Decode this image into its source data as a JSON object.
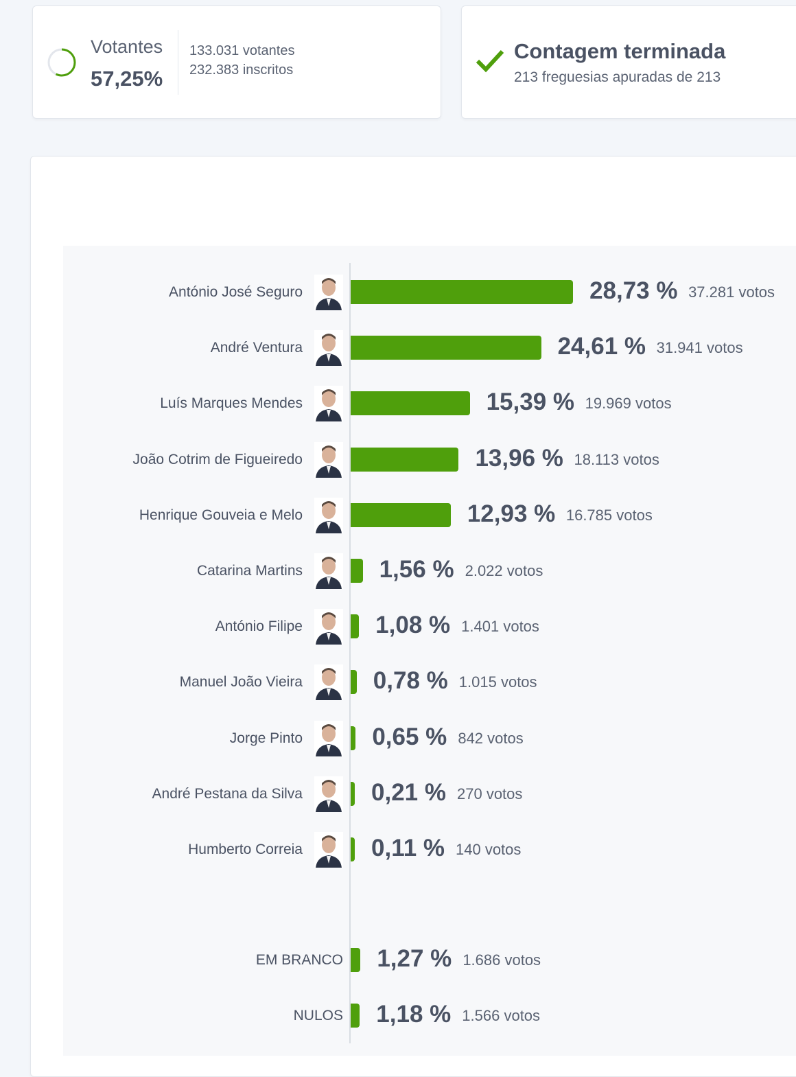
{
  "turnout": {
    "label": "Votantes",
    "percent_text": "57,25%",
    "percent": 57.25,
    "voters": "133.031 votantes",
    "registered": "232.383 inscritos"
  },
  "status": {
    "title": "Contagem terminada",
    "subtitle": "213 freguesias apuradas de 213"
  },
  "colors": {
    "bar": "#4f9f0c",
    "text": "#4a5263"
  },
  "chart_data": {
    "type": "bar",
    "orientation": "horizontal",
    "xlim": [
      0,
      100
    ],
    "categories": [
      "António José Seguro",
      "André Ventura",
      "Luís Marques Mendes",
      "João Cotrim de Figueiredo",
      "Henrique Gouveia e Melo",
      "Catarina Martins",
      "António Filipe",
      "Manuel João Vieira",
      "Jorge Pinto",
      "André Pestana da Silva",
      "Humberto Correia",
      "EM BRANCO",
      "NULOS"
    ],
    "values": [
      28.73,
      24.61,
      15.39,
      13.96,
      12.93,
      1.56,
      1.08,
      0.78,
      0.65,
      0.21,
      0.11,
      1.27,
      1.18
    ],
    "pct_labels": [
      "28,73 %",
      "24,61 %",
      "15,39 %",
      "13,96 %",
      "12,93 %",
      "1,56 %",
      "1,08 %",
      "0,78 %",
      "0,65 %",
      "0,21 %",
      "0,11 %",
      "1,27 %",
      "1,18 %"
    ],
    "votes_labels": [
      "37.281 votos",
      "31.941 votos",
      "19.969 votos",
      "18.113 votos",
      "16.785 votos",
      "2.022 votos",
      "1.401 votos",
      "1.015 votos",
      "842 votos",
      "270 votos",
      "140 votos",
      "1.686 votos",
      "1.566 votos"
    ],
    "has_photo": [
      true,
      true,
      true,
      true,
      true,
      true,
      true,
      true,
      true,
      true,
      true,
      false,
      false
    ]
  }
}
